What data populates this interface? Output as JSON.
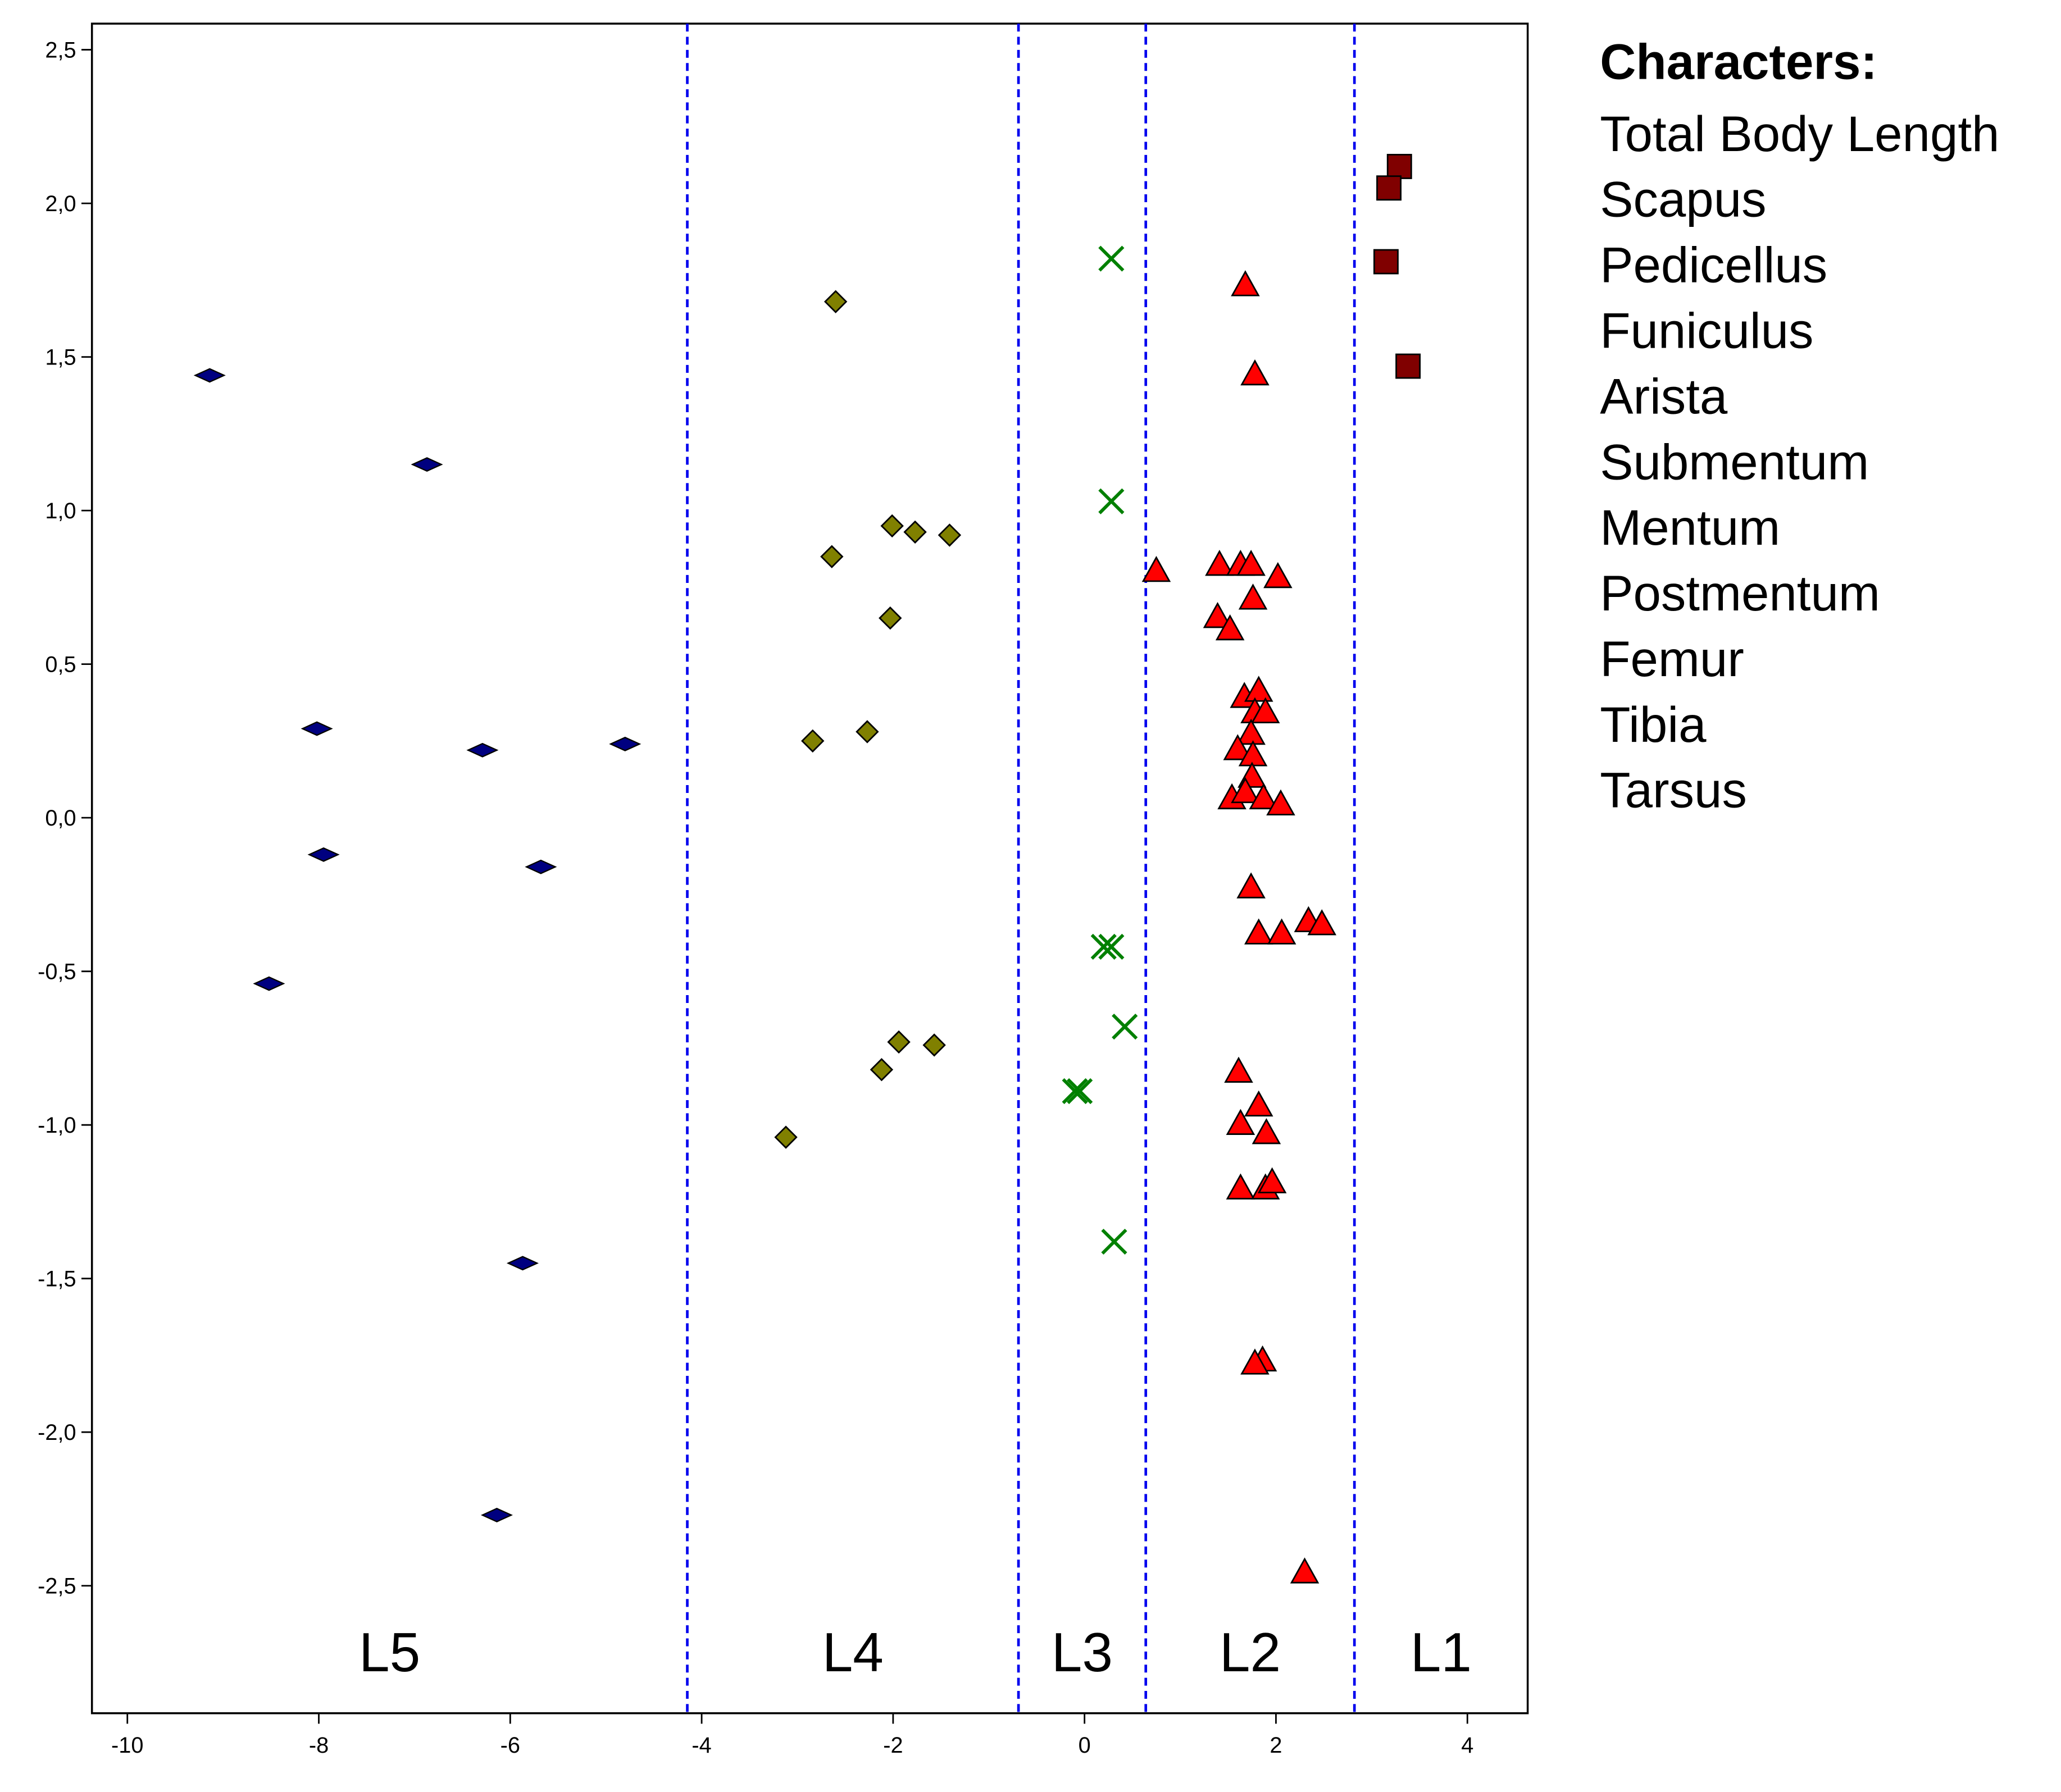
{
  "chart_data": {
    "type": "scatter",
    "xlim": [
      -10.37,
      4.63
    ],
    "ylim": [
      -2.915,
      2.585
    ],
    "xticks": [
      -10,
      -8,
      -6,
      -4,
      -2,
      0,
      2,
      4
    ],
    "yticks": [
      {
        "value": 2.5,
        "label": "2,5"
      },
      {
        "value": 2.0,
        "label": "2,0"
      },
      {
        "value": 1.5,
        "label": "1,5"
      },
      {
        "value": 1.0,
        "label": "1,0"
      },
      {
        "value": 0.5,
        "label": "0,5"
      },
      {
        "value": 0.0,
        "label": "0,0"
      },
      {
        "value": -0.5,
        "label": "-0,5"
      },
      {
        "value": -1.0,
        "label": "-1,0"
      },
      {
        "value": -1.5,
        "label": "-1,5"
      },
      {
        "value": -2.0,
        "label": "-2,0"
      },
      {
        "value": -2.5,
        "label": "-2,5"
      }
    ],
    "grid": false,
    "boundaries": [
      -4.15,
      -0.69,
      0.64,
      2.82
    ],
    "boundary_color": "#0000ee",
    "regions": [
      "L5",
      "L4",
      "L3",
      "L2",
      "L1"
    ],
    "legend_title": "Characters:",
    "legend_items": [
      "Total Body Length",
      "Scapus",
      "Pedicellus",
      "Funiculus",
      "Arista",
      "Submentum",
      "Mentum",
      "Postmentum",
      "Femur",
      "Tibia",
      "Tarsus"
    ],
    "series": [
      {
        "color": "#000080",
        "marker": "flat-diamond",
        "x": [
          -9.14,
          -6.87,
          -8.02,
          -6.29,
          -4.8,
          -7.95,
          -5.68,
          -8.52,
          -5.87,
          -6.14
        ],
        "values": [
          1.44,
          1.15,
          0.29,
          0.22,
          0.24,
          -0.12,
          -0.16,
          -0.54,
          -1.45,
          -2.27
        ]
      },
      {
        "color": "#808000",
        "marker": "diamond",
        "x": [
          -2.6,
          -2.01,
          -1.77,
          -1.41,
          -2.64,
          -2.03,
          -2.84,
          -2.27,
          -1.94,
          -1.57,
          -2.12,
          -3.12
        ],
        "values": [
          1.68,
          0.95,
          0.93,
          0.92,
          0.85,
          0.65,
          0.25,
          0.28,
          -0.73,
          -0.74,
          -0.82,
          -1.04
        ]
      },
      {
        "color": "#008000",
        "marker": "cross",
        "x": [
          0.28,
          0.28,
          0.2,
          0.28,
          0.42,
          -0.1,
          -0.05,
          0.31
        ],
        "values": [
          1.82,
          1.03,
          -0.42,
          -0.42,
          -0.68,
          -0.89,
          -0.89,
          -1.38
        ]
      },
      {
        "color": "#ff0000",
        "marker": "triangle",
        "x": [
          1.68,
          1.78,
          0.75,
          1.41,
          1.63,
          1.74,
          2.02,
          1.76,
          1.39,
          1.52,
          1.67,
          1.82,
          1.78,
          1.89,
          1.74,
          1.6,
          1.76,
          1.75,
          1.54,
          1.68,
          1.87,
          2.05,
          1.74,
          2.34,
          2.48,
          1.82,
          2.06,
          1.61,
          1.82,
          1.63,
          1.9,
          1.63,
          1.89,
          1.96,
          1.86,
          1.78,
          2.3
        ],
        "values": [
          1.73,
          1.44,
          0.8,
          0.82,
          0.82,
          0.82,
          0.78,
          0.71,
          0.65,
          0.61,
          0.39,
          0.41,
          0.34,
          0.34,
          0.27,
          0.22,
          0.2,
          0.13,
          0.06,
          0.08,
          0.06,
          0.04,
          -0.23,
          -0.34,
          -0.35,
          -0.38,
          -0.38,
          -0.83,
          -0.94,
          -1.0,
          -1.03,
          -1.21,
          -1.21,
          -1.19,
          -1.77,
          -1.78,
          -2.46
        ]
      },
      {
        "color": "#800000",
        "marker": "square",
        "x": [
          3.29,
          3.18,
          3.15,
          3.38
        ],
        "values": [
          2.12,
          2.05,
          1.81,
          1.47
        ]
      }
    ]
  }
}
